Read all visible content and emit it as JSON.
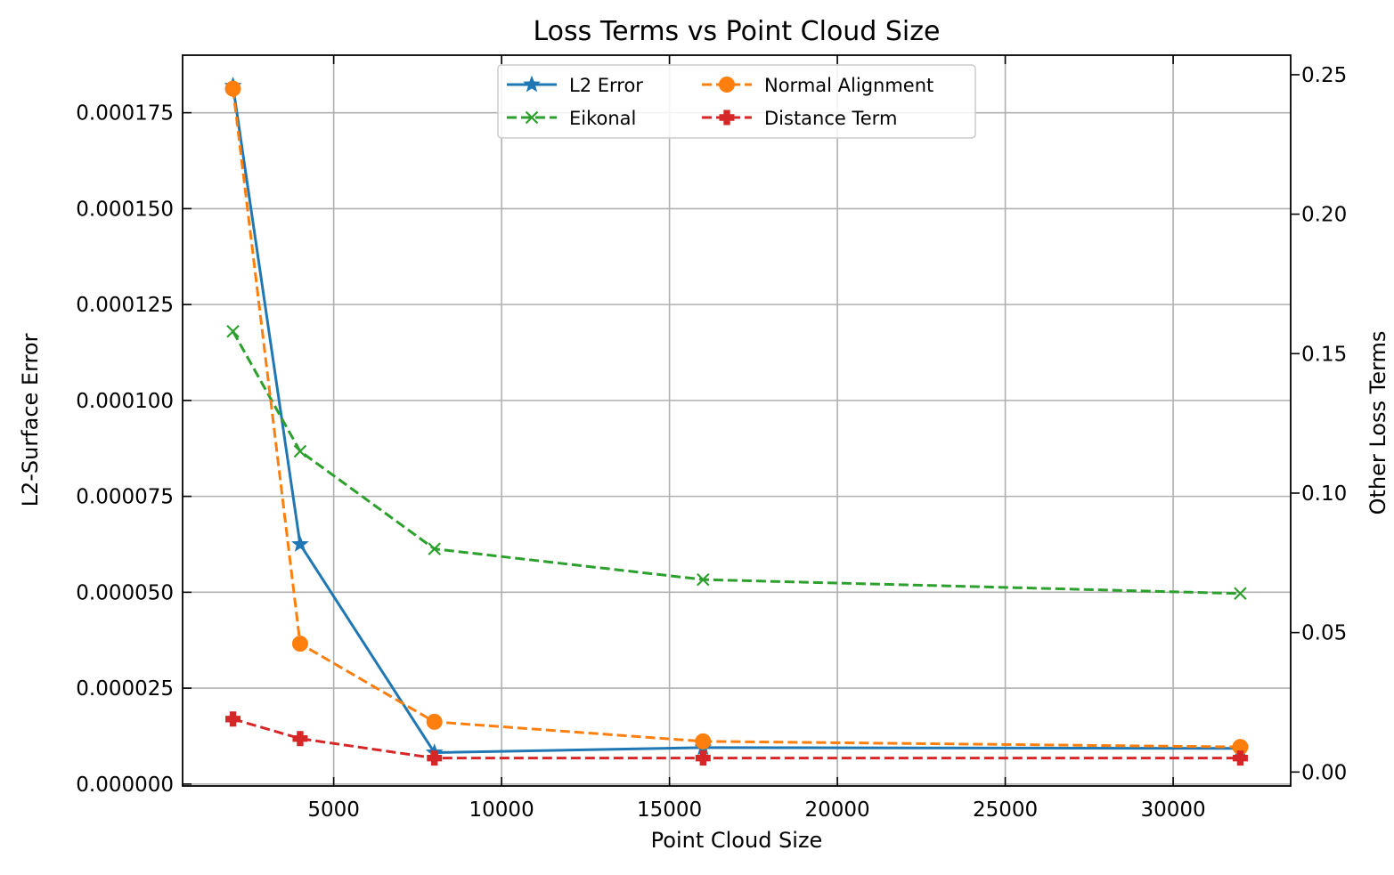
{
  "chart_data": {
    "type": "line",
    "title": "Loss Terms vs Point Cloud Size",
    "xlabel": "Point Cloud Size",
    "ylabel_left": "L2-Surface Error",
    "ylabel_right": "Other Loss Terms",
    "x": [
      2000,
      4000,
      8000,
      16000,
      32000
    ],
    "xlim": [
      500,
      33500
    ],
    "ylim_left": [
      -5e-07,
      0.00019
    ],
    "ylim_right": [
      -0.005,
      0.257
    ],
    "x_ticks": [
      5000,
      10000,
      15000,
      20000,
      25000,
      30000
    ],
    "x_tick_labels": [
      "5000",
      "10000",
      "15000",
      "20000",
      "25000",
      "30000"
    ],
    "y_left_ticks": [
      0,
      2.5e-05,
      5e-05,
      7.5e-05,
      0.0001,
      0.000125,
      0.00015,
      0.000175
    ],
    "y_left_tick_labels": [
      "0.000000",
      "0.000025",
      "0.000050",
      "0.000075",
      "0.000100",
      "0.000125",
      "0.000150",
      "0.000175"
    ],
    "y_right_ticks": [
      0,
      0.05,
      0.1,
      0.15,
      0.2,
      0.25
    ],
    "y_right_tick_labels": [
      "0.00",
      "0.05",
      "0.10",
      "0.15",
      "0.20",
      "0.25"
    ],
    "grid": true,
    "legend_position": "top-center",
    "series": [
      {
        "name": "L2 Error",
        "axis": "left",
        "values": [
          0.000182,
          6.25e-05,
          8.2e-06,
          9.5e-06,
          9.3e-06
        ],
        "color": "#1f77b4",
        "dash": "solid",
        "marker": "star"
      },
      {
        "name": "Eikonal",
        "axis": "right",
        "values": [
          0.158,
          0.115,
          0.08,
          0.069,
          0.064
        ],
        "color": "#2ca02c",
        "dash": "dashed",
        "marker": "x"
      },
      {
        "name": "Normal Alignment",
        "axis": "right",
        "values": [
          0.245,
          0.046,
          0.018,
          0.011,
          0.009
        ],
        "color": "#ff7f0e",
        "dash": "dashed",
        "marker": "circle"
      },
      {
        "name": "Distance Term",
        "axis": "right",
        "values": [
          0.019,
          0.012,
          0.005,
          0.005,
          0.005
        ],
        "color": "#d62728",
        "dash": "dashed",
        "marker": "plus"
      }
    ],
    "legend_order": [
      "L2 Error",
      "Eikonal",
      "Normal Alignment",
      "Distance Term"
    ]
  }
}
